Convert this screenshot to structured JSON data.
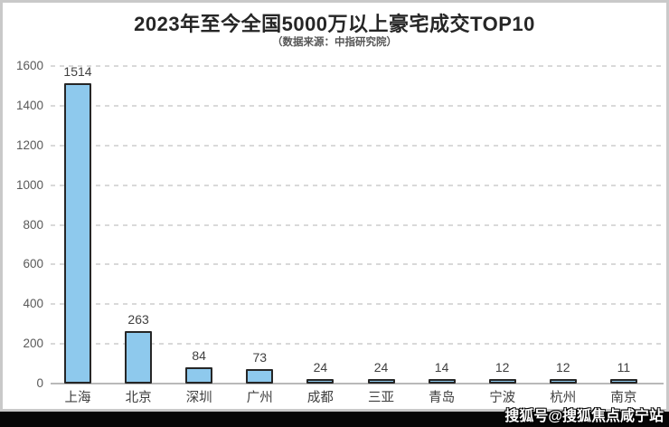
{
  "header": {
    "title": "2023年至今全国5000万以上豪宅成交TOP10",
    "subtitle": "（数据来源：中指研究院）"
  },
  "watermark": {
    "text": "搜狐号@搜狐焦点咸宁站"
  },
  "chart_data": {
    "type": "bar",
    "title": "2023年至今全国5000万以上豪宅成交TOP10",
    "subtitle": "（数据来源：中指研究院）",
    "categories": [
      "上海",
      "北京",
      "深圳",
      "广州",
      "成都",
      "三亚",
      "青岛",
      "宁波",
      "杭州",
      "南京"
    ],
    "values": [
      1514,
      263,
      84,
      73,
      24,
      24,
      14,
      12,
      12,
      11
    ],
    "yticks": [
      0,
      200,
      400,
      600,
      800,
      1000,
      1200,
      1400,
      1600
    ],
    "ylim": [
      0,
      1600
    ],
    "xlabel": "",
    "ylabel": "",
    "grid": true,
    "grid_style": "dashed",
    "legend": "none",
    "bar_fill": "#8ec9ed",
    "bar_stroke": "#262626"
  },
  "colors": {
    "frame_border": "#c9c9c9",
    "background": "#ffffff",
    "bottom_bar": "#060606",
    "gridline": "#d9d9d9",
    "axis_line": "#b9b9b9",
    "tick_label": "#595959",
    "value_label": "#3f3f3f",
    "category_label": "#3f3f3f",
    "title": "#262626"
  }
}
